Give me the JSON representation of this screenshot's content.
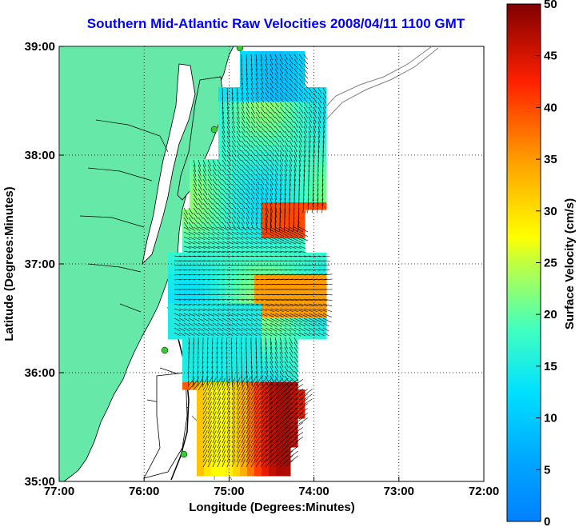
{
  "title": "Southern Mid-Atlantic Raw Velocities 2008/04/11 1100 GMT",
  "map": {
    "xlabel": "Longitude (Degrees:Minutes)",
    "ylabel": "Latitude (Degrees:Minutes)",
    "x_ticks": [
      "77:00",
      "76:00",
      "75:00",
      "74:00",
      "73:00",
      "72:00"
    ],
    "y_ticks": [
      "39:00",
      "38:00",
      "37:00",
      "36:00",
      "35:00"
    ],
    "grid": true,
    "colors": {
      "land": "#66e8a8",
      "coast": "#000000",
      "isobath": "#808080",
      "station": "#33cc33"
    }
  },
  "colorbar": {
    "label": "Surface Velocity (cm/s)",
    "ticks": [
      "50",
      "45",
      "40",
      "35",
      "30",
      "25",
      "20",
      "15",
      "10",
      "5",
      "0"
    ],
    "min": 0,
    "max": 50,
    "colormap": "jet"
  }
}
